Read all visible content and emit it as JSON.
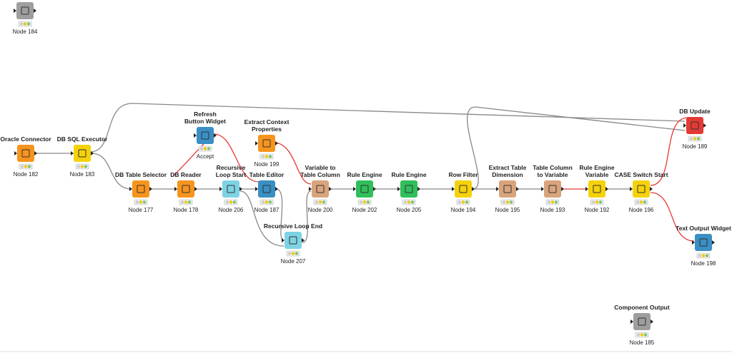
{
  "nodes": [
    {
      "title": [],
      "label": "Node 184"
    },
    {
      "title": [
        "Oracle Connector"
      ],
      "label": "Node 182"
    },
    {
      "title": [
        "DB SQL Executor"
      ],
      "label": "Node 183"
    },
    {
      "title": [
        "DB Table Selector"
      ],
      "label": "Node 177"
    },
    {
      "title": [
        "DB Reader"
      ],
      "label": "Node 178"
    },
    {
      "title": [
        "Refresh",
        "Button Widget"
      ],
      "label": "Accept"
    },
    {
      "title": [
        "Recursive",
        "Loop Start"
      ],
      "label": "Node 206"
    },
    {
      "title": [
        "Extract Context",
        "Properties"
      ],
      "label": "Node 199"
    },
    {
      "title": [
        "Table Editor"
      ],
      "label": "Node 187"
    },
    {
      "title": [
        "Recursive Loop End"
      ],
      "label": "Node 207"
    },
    {
      "title": [
        "Variable to",
        "Table Column"
      ],
      "label": "Node 200"
    },
    {
      "title": [
        "Rule Engine"
      ],
      "label": "Node 202"
    },
    {
      "title": [
        "Rule Engine"
      ],
      "label": "Node 205"
    },
    {
      "title": [
        "Row Filter"
      ],
      "label": "Node 194"
    },
    {
      "title": [
        "Extract Table",
        "Dimension"
      ],
      "label": "Node 195"
    },
    {
      "title": [
        "Table Column",
        "to Variable"
      ],
      "label": "Node 193"
    },
    {
      "title": [
        "Rule Engine",
        "Variable"
      ],
      "label": "Node 192"
    },
    {
      "title": [
        "CASE Switch Start"
      ],
      "label": "Node 196"
    },
    {
      "title": [
        "DB Update"
      ],
      "label": "Node 189"
    },
    {
      "title": [
        "Text Output Widget"
      ],
      "label": "Node 198"
    },
    {
      "title": [
        "Component Output"
      ],
      "label": "Node 185"
    }
  ]
}
